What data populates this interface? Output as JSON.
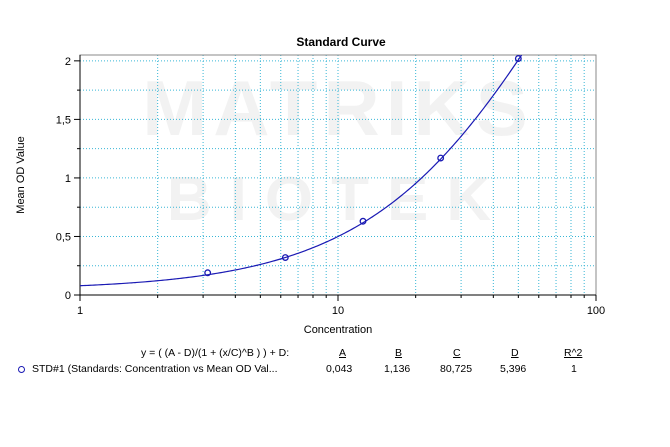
{
  "chart_data": {
    "type": "scatter",
    "title": "Standard Curve",
    "xlabel": "Concentration",
    "ylabel": "Mean OD Value",
    "x_scale": "log",
    "xlim": [
      1,
      100
    ],
    "ylim": [
      0,
      2.05
    ],
    "x_ticks": [
      {
        "value": 1,
        "label": "1"
      },
      {
        "value": 10,
        "label": "10"
      },
      {
        "value": 100,
        "label": "100"
      }
    ],
    "y_ticks": [
      {
        "value": 0,
        "label": "0"
      },
      {
        "value": 0.5,
        "label": "0,5"
      },
      {
        "value": 1,
        "label": "1"
      },
      {
        "value": 1.5,
        "label": "1,5"
      },
      {
        "value": 2,
        "label": "2"
      }
    ],
    "grid": true,
    "watermark": "MATRIKS BIOTEK",
    "series": [
      {
        "name": "STD#1 (Standards: Concentration vs Mean OD Val...",
        "color": "#1a1ab4",
        "points": [
          {
            "x": 3.125,
            "y": 0.19
          },
          {
            "x": 6.25,
            "y": 0.32
          },
          {
            "x": 12.5,
            "y": 0.63
          },
          {
            "x": 25,
            "y": 1.17
          },
          {
            "x": 50,
            "y": 2.02
          }
        ],
        "fit": {
          "model": "4PL",
          "A": 0.043,
          "B": 1.136,
          "C": 80.725,
          "D": 5.396
        }
      }
    ]
  },
  "legend": {
    "equation": "y = ( (A - D)/(1 + (x/C)^B ) ) + D:",
    "headers": [
      "A",
      "B",
      "C",
      "D",
      "R^2"
    ],
    "row_label": "STD#1 (Standards: Concentration vs Mean OD Val...",
    "values": [
      "0,043",
      "1,136",
      "80,725",
      "5,396",
      "1"
    ]
  }
}
